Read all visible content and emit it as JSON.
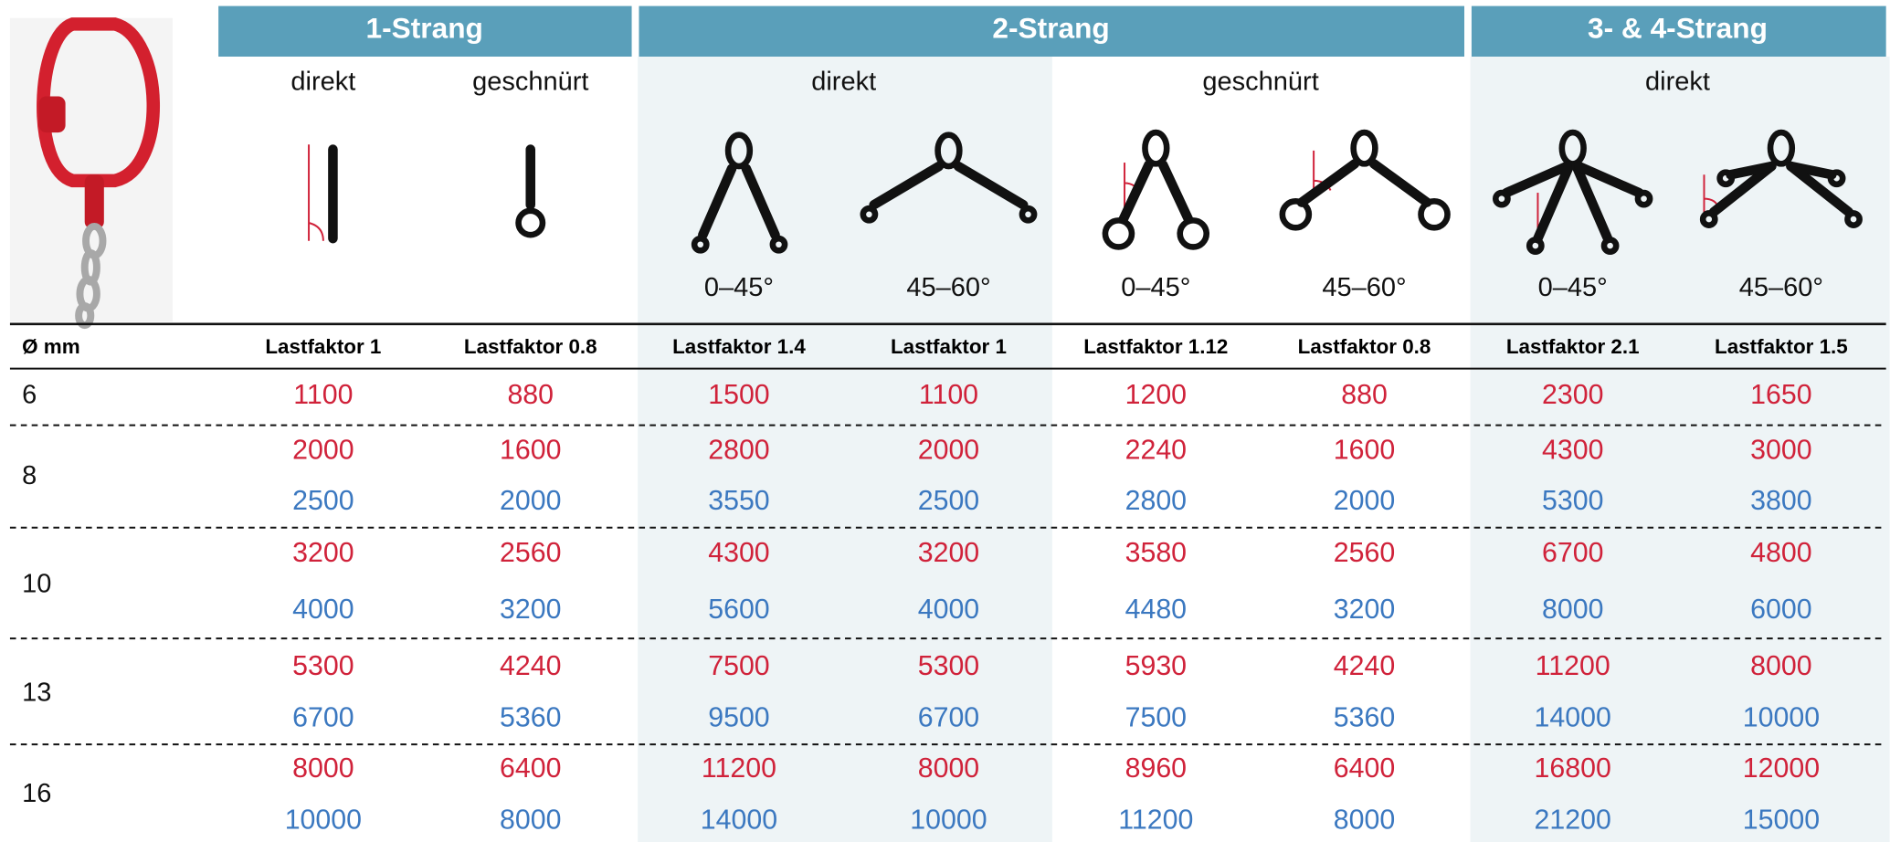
{
  "header": {
    "groups": [
      "1-Strang",
      "2-Strang",
      "3- & 4-Strang"
    ],
    "subgroups": [
      "direkt",
      "geschnürt",
      "direkt",
      "geschnürt",
      "direkt"
    ],
    "angles": [
      "0–45°",
      "45–60°",
      "0–45°",
      "45–60°",
      "0–45°",
      "45–60°"
    ],
    "diameter_label": "Ø mm",
    "load_factors": [
      "Lastfaktor 1",
      "Lastfaktor 0.8",
      "Lastfaktor 1.4",
      "Lastfaktor 1",
      "Lastfaktor 1.12",
      "Lastfaktor 0.8",
      "Lastfaktor 2.1",
      "Lastfaktor 1.5"
    ]
  },
  "rows": [
    {
      "diameter": "6",
      "red": [
        1100,
        880,
        1500,
        1100,
        1200,
        880,
        2300,
        1650
      ]
    },
    {
      "diameter": "8",
      "red": [
        2000,
        1600,
        2800,
        2000,
        2240,
        1600,
        4300,
        3000
      ],
      "blue": [
        2500,
        2000,
        3550,
        2500,
        2800,
        2000,
        5300,
        3800
      ]
    },
    {
      "diameter": "10",
      "red": [
        3200,
        2560,
        4300,
        3200,
        3580,
        2560,
        6700,
        4800
      ],
      "blue": [
        4000,
        3200,
        5600,
        4000,
        4480,
        3200,
        8000,
        6000
      ]
    },
    {
      "diameter": "13",
      "red": [
        5300,
        4240,
        7500,
        5300,
        5930,
        4240,
        11200,
        8000
      ],
      "blue": [
        6700,
        5360,
        9500,
        6700,
        7500,
        5360,
        14000,
        10000
      ]
    },
    {
      "diameter": "16",
      "red": [
        8000,
        6400,
        11200,
        8000,
        8960,
        6400,
        16800,
        12000
      ],
      "blue": [
        10000,
        8000,
        14000,
        10000,
        11200,
        8000,
        21200,
        15000
      ]
    }
  ]
}
